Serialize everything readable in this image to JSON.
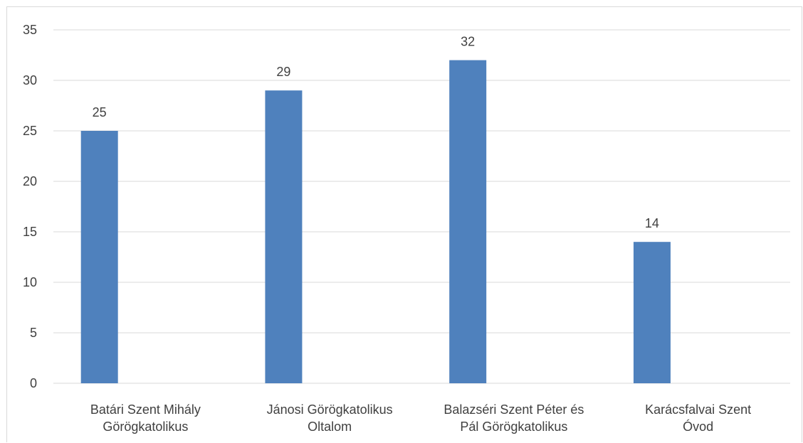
{
  "chart_data": {
    "type": "bar",
    "title": "",
    "xlabel": "",
    "ylabel": "",
    "categories": [
      [
        "Batári Szent Mihály",
        "Görögkatolikus"
      ],
      [
        "Jánosi Görögkatolikus",
        "Oltalom"
      ],
      [
        "Balazséri Szent Péter és",
        "Pál Görögkatolikus"
      ],
      [
        "Karácsfalvai Szent",
        "Óvod"
      ]
    ],
    "values": [
      25,
      29,
      32,
      14
    ],
    "data_labels": [
      "25",
      "29",
      "32",
      "14"
    ],
    "ylim": [
      0,
      35
    ],
    "yticks": [
      0,
      5,
      10,
      15,
      20,
      25,
      30,
      35
    ],
    "grid": true,
    "legend": "none",
    "bar_color": "#4f81bd",
    "grid_color": "#d9d9d9",
    "text_color": "#404040"
  }
}
